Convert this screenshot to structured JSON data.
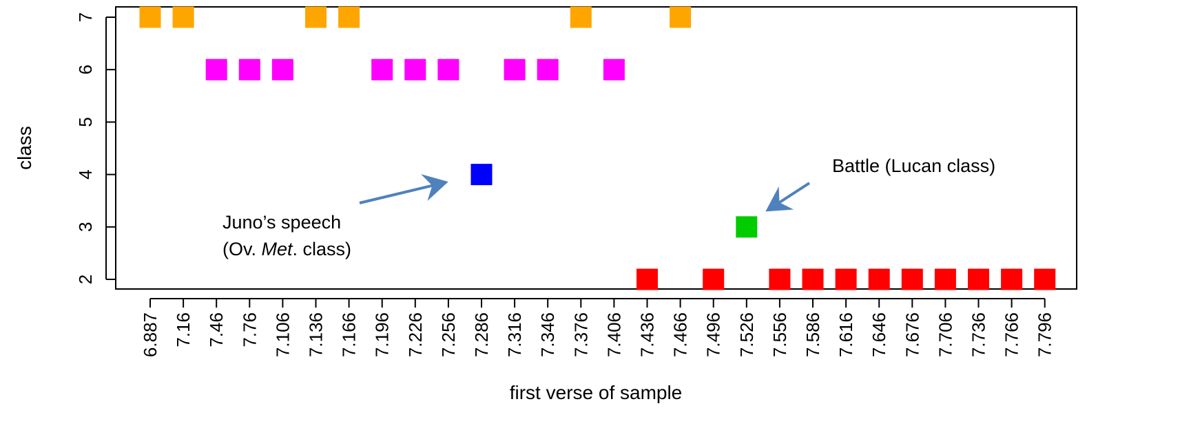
{
  "chart_data": {
    "type": "scatter",
    "xlabel": "first verse of sample",
    "ylabel": "class",
    "categories": [
      "6.887",
      "7.16",
      "7.46",
      "7.76",
      "7.106",
      "7.136",
      "7.166",
      "7.196",
      "7.226",
      "7.256",
      "7.286",
      "7.316",
      "7.346",
      "7.376",
      "7.406",
      "7.436",
      "7.466",
      "7.496",
      "7.526",
      "7.556",
      "7.586",
      "7.616",
      "7.646",
      "7.676",
      "7.706",
      "7.736",
      "7.766",
      "7.796"
    ],
    "y_ticks": [
      2,
      3,
      4,
      5,
      6,
      7
    ],
    "ylim": [
      2,
      7
    ],
    "grid": false,
    "marker": "square",
    "class_colors": {
      "2": "#ff0000",
      "3": "#00cc00",
      "4": "#0000ff",
      "6": "#ff00ff",
      "7": "#ffa500"
    },
    "points": [
      {
        "x": 0.5,
        "class": 7
      },
      {
        "x": 1.5,
        "class": 7
      },
      {
        "x": 2.5,
        "class": 6
      },
      {
        "x": 3.5,
        "class": 6
      },
      {
        "x": 4.5,
        "class": 6
      },
      {
        "x": 5.5,
        "class": 7
      },
      {
        "x": 6.5,
        "class": 7
      },
      {
        "x": 7.5,
        "class": 6
      },
      {
        "x": 8.5,
        "class": 6
      },
      {
        "x": 9.5,
        "class": 6
      },
      {
        "x": 10.5,
        "class": 4
      },
      {
        "x": 11.5,
        "class": 6
      },
      {
        "x": 12.5,
        "class": 6
      },
      {
        "x": 13.5,
        "class": 7
      },
      {
        "x": 14.5,
        "class": 6
      },
      {
        "x": 15.5,
        "class": 2
      },
      {
        "x": 16.5,
        "class": 7
      },
      {
        "x": 17.5,
        "class": 2
      },
      {
        "x": 18.5,
        "class": 3
      },
      {
        "x": 19.5,
        "class": 2
      },
      {
        "x": 20.5,
        "class": 2
      },
      {
        "x": 21.5,
        "class": 2
      },
      {
        "x": 22.5,
        "class": 2
      },
      {
        "x": 23.5,
        "class": 2
      },
      {
        "x": 24.5,
        "class": 2
      },
      {
        "x": 25.5,
        "class": 2
      },
      {
        "x": 26.5,
        "class": 2
      },
      {
        "x": 27.5,
        "class": 2
      }
    ],
    "annotations": [
      {
        "name": "juno",
        "line1": "Juno’s speech",
        "line2_pre": "(Ov. ",
        "line2_italic": "Met",
        "line2_post": ". class)",
        "arrow_color": "#4f81bd"
      },
      {
        "name": "battle",
        "text": "Battle (Lucan class)",
        "arrow_color": "#4f81bd"
      }
    ]
  }
}
